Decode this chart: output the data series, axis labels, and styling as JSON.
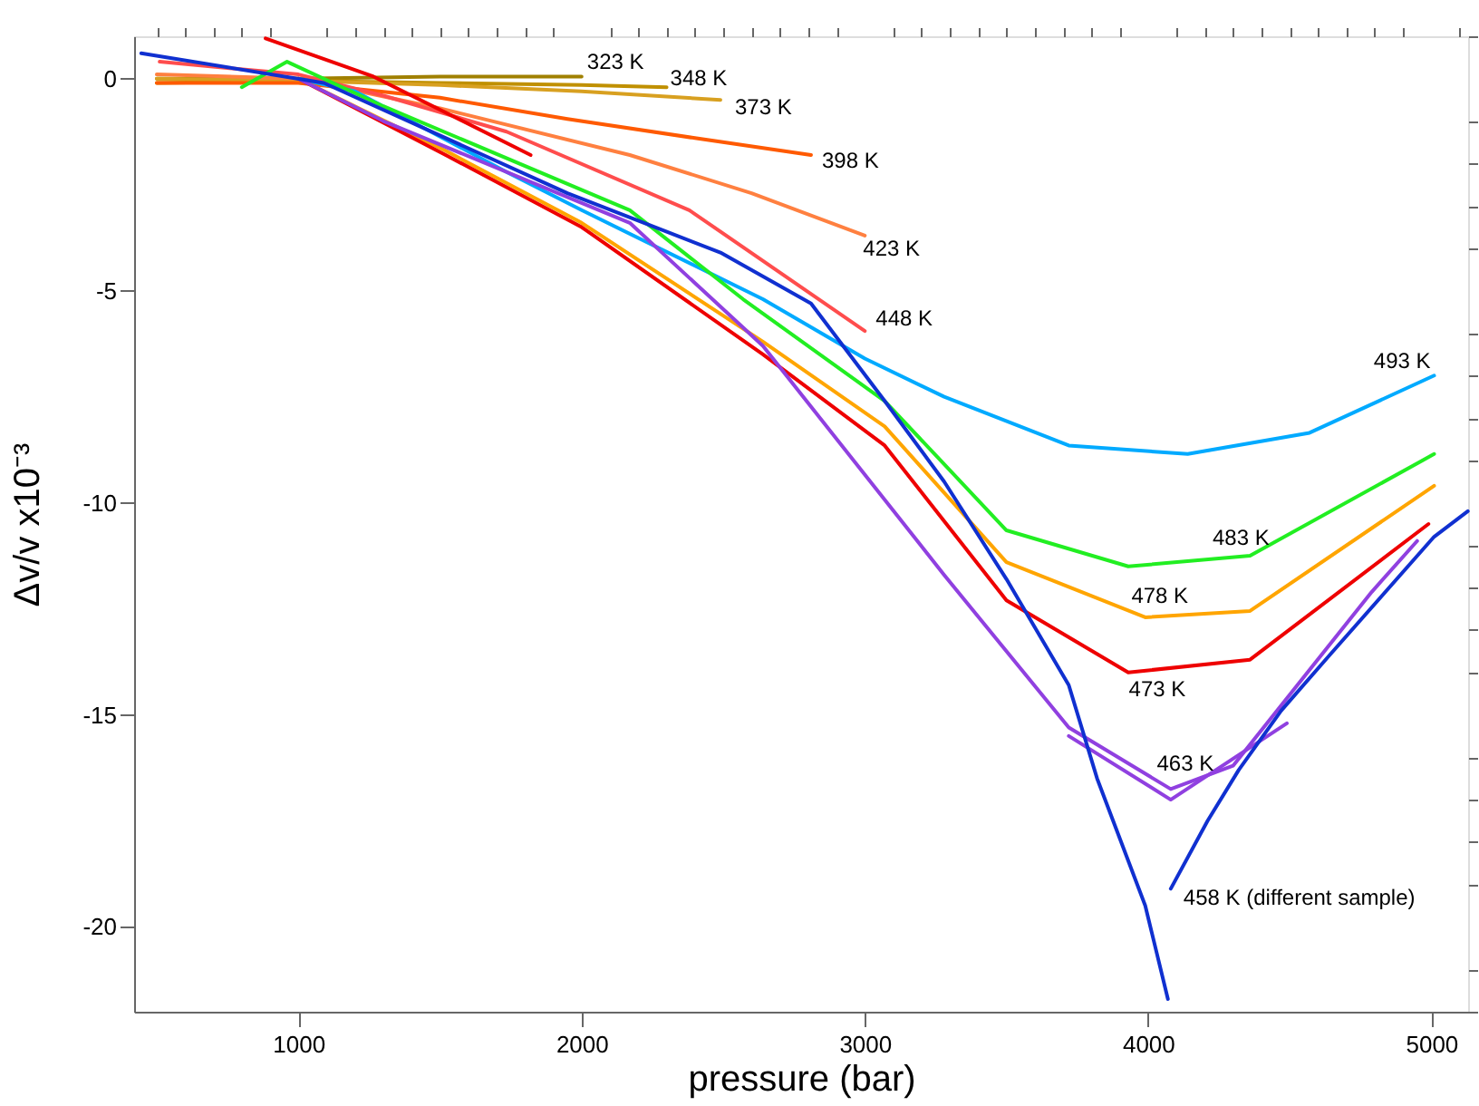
{
  "chart_data": {
    "type": "line",
    "xlabel": "pressure (bar)",
    "ylabel": "Δv/v x10⁻³",
    "xlim": [
      420,
      5130
    ],
    "ylim": [
      -22,
      1
    ],
    "xticks": [
      {
        "value": 500,
        "label": null
      },
      {
        "value": 600,
        "label": null
      },
      {
        "value": 700,
        "label": null
      },
      {
        "value": 800,
        "label": null
      },
      {
        "value": 900,
        "label": null
      },
      1000,
      {
        "value": 1100,
        "label": null
      },
      {
        "value": 1200,
        "label": null
      },
      {
        "value": 1300,
        "label": null
      },
      {
        "value": 1400,
        "label": null
      },
      {
        "value": 1500,
        "label": null
      },
      {
        "value": 1600,
        "label": null
      },
      {
        "value": 1700,
        "label": null
      },
      {
        "value": 1800,
        "label": null
      },
      {
        "value": 1900,
        "label": null
      },
      2000,
      {
        "value": 2100,
        "label": null
      },
      {
        "value": 2200,
        "label": null
      },
      {
        "value": 2300,
        "label": null
      },
      {
        "value": 2400,
        "label": null
      },
      {
        "value": 2500,
        "label": null
      },
      {
        "value": 2600,
        "label": null
      },
      {
        "value": 2700,
        "label": null
      },
      {
        "value": 2800,
        "label": null
      },
      {
        "value": 2900,
        "label": null
      },
      3000,
      {
        "value": 3100,
        "label": null
      },
      {
        "value": 3200,
        "label": null
      },
      {
        "value": 3300,
        "label": null
      },
      {
        "value": 3400,
        "label": null
      },
      {
        "value": 3500,
        "label": null
      },
      {
        "value": 3600,
        "label": null
      },
      {
        "value": 3700,
        "label": null
      },
      {
        "value": 3800,
        "label": null
      },
      {
        "value": 3900,
        "label": null
      },
      4000,
      {
        "value": 4100,
        "label": null
      },
      {
        "value": 4200,
        "label": null
      },
      {
        "value": 4300,
        "label": null
      },
      {
        "value": 4400,
        "label": null
      },
      {
        "value": 4500,
        "label": null
      },
      {
        "value": 4600,
        "label": null
      },
      {
        "value": 4700,
        "label": null
      },
      {
        "value": 4800,
        "label": null
      },
      {
        "value": 4900,
        "label": null
      },
      5000,
      {
        "value": 5100,
        "label": null
      }
    ],
    "yticks": [
      {
        "value": 1,
        "label": null
      },
      0,
      {
        "value": -1,
        "label": null
      },
      {
        "value": -2,
        "label": null
      },
      {
        "value": -3,
        "label": null
      },
      {
        "value": -4,
        "label": null
      },
      -5,
      {
        "value": -6,
        "label": null
      },
      {
        "value": -7,
        "label": null
      },
      {
        "value": -8,
        "label": null
      },
      {
        "value": -9,
        "label": null
      },
      -10,
      {
        "value": -11,
        "label": null
      },
      {
        "value": -12,
        "label": null
      },
      {
        "value": -13,
        "label": null
      },
      {
        "value": -14,
        "label": null
      },
      -15,
      {
        "value": -16,
        "label": null
      },
      {
        "value": -17,
        "label": null
      },
      {
        "value": -18,
        "label": null
      },
      {
        "value": -19,
        "label": null
      },
      -20,
      {
        "value": -21,
        "label": null
      },
      {
        "value": -22,
        "label": null
      }
    ],
    "grid": false,
    "legend": false,
    "marker": "none",
    "line_style": "solid",
    "series": [
      {
        "name": "323 K",
        "color": "#a08000",
        "x": [
          500,
          1000,
          1500,
          2000
        ],
        "values": [
          0.0,
          0.0,
          0.05,
          0.05
        ]
      },
      {
        "name": "348 K",
        "color": "#c09000",
        "x": [
          500,
          1000,
          1500,
          2000,
          2300
        ],
        "values": [
          -0.1,
          -0.05,
          -0.1,
          -0.15,
          -0.2
        ]
      },
      {
        "name": "373 K",
        "color": "#d8a020",
        "x": [
          500,
          1000,
          1500,
          2000,
          2490
        ],
        "values": [
          0.0,
          -0.05,
          -0.15,
          -0.3,
          -0.5
        ]
      },
      {
        "name": "398 K",
        "color": "#ff5a00",
        "x": [
          500,
          1000,
          1500,
          1950,
          2400,
          2810
        ],
        "values": [
          -0.1,
          -0.1,
          -0.45,
          -0.95,
          -1.4,
          -1.8
        ]
      },
      {
        "name": "423 K",
        "color": "#ff8040",
        "x": [
          500,
          1000,
          1500,
          2170,
          2600,
          3000
        ],
        "values": [
          0.1,
          0.0,
          -0.7,
          -1.8,
          -2.7,
          -3.7
        ]
      },
      {
        "name": "448 K",
        "color": "#ff4d4d",
        "x": [
          510,
          1000,
          1300,
          1735,
          2380,
          3000
        ],
        "values": [
          0.4,
          0.1,
          -0.4,
          -1.25,
          -3.1,
          -5.95
        ]
      },
      {
        "color": "#ee0000",
        "x": [
          884,
          1265,
          1820
        ],
        "values": [
          0.95,
          0.05,
          -1.8
        ]
      },
      {
        "name": "493 K",
        "color": "#00aaff",
        "x": [
          1000,
          1200,
          1735,
          2000,
          2640,
          3000,
          3280,
          3720,
          4140,
          4570,
          5010
        ],
        "values": [
          0.0,
          -0.3,
          -2.2,
          -3.1,
          -5.2,
          -6.6,
          -7.5,
          -8.65,
          -8.85,
          -8.35,
          -7.0
        ]
      },
      {
        "name": "483 K",
        "color": "#22ee22",
        "x": [
          800,
          960,
          1300,
          2170,
          2570,
          3070,
          3500,
          3930,
          4360,
          5010
        ],
        "values": [
          -0.2,
          0.4,
          -0.65,
          -3.1,
          -5.2,
          -7.6,
          -10.65,
          -11.5,
          -11.25,
          -8.85
        ]
      },
      {
        "name": "478 K",
        "color": "#ffa500",
        "x": [
          1000,
          1520,
          2000,
          2640,
          3070,
          3500,
          3990,
          4360,
          5010
        ],
        "values": [
          0.0,
          -1.7,
          -3.4,
          -6.2,
          -8.2,
          -11.4,
          -12.7,
          -12.55,
          -9.6
        ]
      },
      {
        "name": "473 K",
        "color": "#ee0000",
        "x": [
          1000,
          1520,
          2000,
          2640,
          3070,
          3500,
          3930,
          4360,
          4990
        ],
        "values": [
          0.0,
          -1.8,
          -3.5,
          -6.5,
          -8.65,
          -12.3,
          -14.0,
          -13.7,
          -10.5
        ]
      },
      {
        "name": "463 K",
        "color": "#9040e0",
        "x": [
          1000,
          1300,
          2170,
          2640,
          3280,
          3720,
          4080,
          4300,
          4790,
          4950
        ],
        "values": [
          0.0,
          -1.0,
          -3.4,
          -6.3,
          -11.7,
          -15.3,
          -16.75,
          -16.2,
          -12.1,
          -10.9
        ]
      },
      {
        "color": "#9040e0",
        "x": [
          3720,
          4080,
          4490
        ],
        "values": [
          -15.5,
          -17.0,
          -15.2
        ]
      },
      {
        "name": "458 K (different sample)",
        "color": "#1030d0",
        "x": [
          445,
          1090,
          1950,
          2490,
          2810,
          3070,
          3280,
          3500,
          3720,
          3820,
          3990,
          4070,
          null,
          4080,
          4210,
          4320,
          4470,
          4640,
          5010,
          5129
        ],
        "values": [
          0.6,
          -0.1,
          -2.7,
          -4.1,
          -5.3,
          -7.6,
          -9.5,
          -11.8,
          -14.3,
          -16.5,
          -19.5,
          -21.7,
          null,
          -19.1,
          -17.5,
          -16.3,
          -14.9,
          -13.6,
          -10.8,
          -10.2
        ]
      }
    ]
  }
}
